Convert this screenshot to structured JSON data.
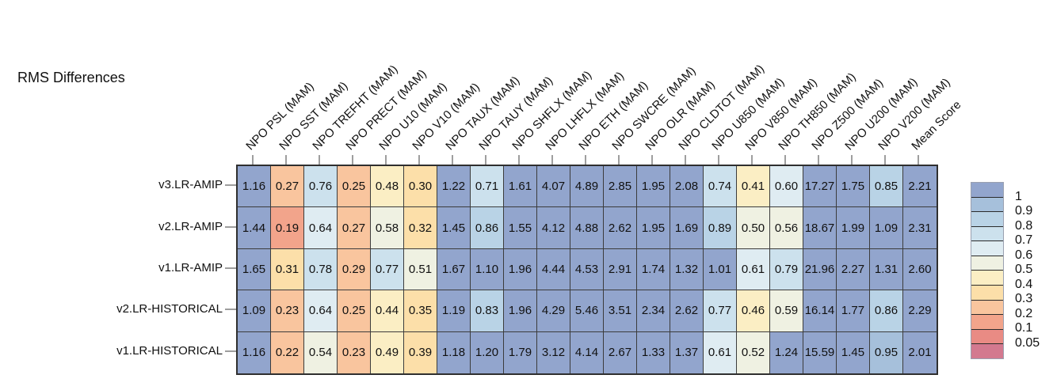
{
  "chart_data": {
    "type": "heatmap",
    "title": "RMS Differences",
    "columns": [
      "NPO PSL (MAM)",
      "NPO SST (MAM)",
      "NPO TREFHT (MAM)",
      "NPO PRECT (MAM)",
      "NPO U10 (MAM)",
      "NPO V10 (MAM)",
      "NPO TAUX (MAM)",
      "NPO TAUY (MAM)",
      "NPO SHFLX (MAM)",
      "NPO LHFLX (MAM)",
      "NPO ETH (MAM)",
      "NPO SWCRE (MAM)",
      "NPO OLR (MAM)",
      "NPO CLDTOT (MAM)",
      "NPO U850 (MAM)",
      "NPO V850 (MAM)",
      "NPO TH850 (MAM)",
      "NPO Z500 (MAM)",
      "NPO U200 (MAM)",
      "NPO V200 (MAM)",
      "Mean Score"
    ],
    "rows": [
      {
        "label": "v3.LR-AMIP",
        "values": [
          "1.16",
          "0.27",
          "0.76",
          "0.25",
          "0.48",
          "0.30",
          "1.22",
          "0.71",
          "1.61",
          "4.07",
          "4.89",
          "2.85",
          "1.95",
          "2.08",
          "0.74",
          "0.41",
          "0.60",
          "17.27",
          "1.75",
          "0.85",
          "2.21"
        ]
      },
      {
        "label": "v2.LR-AMIP",
        "values": [
          "1.44",
          "0.19",
          "0.64",
          "0.27",
          "0.58",
          "0.32",
          "1.45",
          "0.86",
          "1.55",
          "4.12",
          "4.88",
          "2.62",
          "1.95",
          "1.69",
          "0.89",
          "0.50",
          "0.56",
          "18.67",
          "1.99",
          "1.09",
          "2.31"
        ]
      },
      {
        "label": "v1.LR-AMIP",
        "values": [
          "1.65",
          "0.31",
          "0.78",
          "0.29",
          "0.77",
          "0.51",
          "1.67",
          "1.10",
          "1.96",
          "4.44",
          "4.53",
          "2.91",
          "1.74",
          "1.32",
          "1.01",
          "0.61",
          "0.79",
          "21.96",
          "2.27",
          "1.31",
          "2.60"
        ]
      },
      {
        "label": "v2.LR-HISTORICAL",
        "values": [
          "1.09",
          "0.23",
          "0.64",
          "0.25",
          "0.44",
          "0.35",
          "1.19",
          "0.83",
          "1.96",
          "4.29",
          "5.46",
          "3.51",
          "2.34",
          "2.62",
          "0.77",
          "0.46",
          "0.59",
          "16.14",
          "1.77",
          "0.86",
          "2.29"
        ]
      },
      {
        "label": "v1.LR-HISTORICAL",
        "values": [
          "1.16",
          "0.22",
          "0.54",
          "0.23",
          "0.49",
          "0.39",
          "1.18",
          "1.20",
          "1.79",
          "3.12",
          "4.14",
          "2.67",
          "1.33",
          "1.37",
          "0.61",
          "0.52",
          "1.24",
          "15.59",
          "1.45",
          "0.95",
          "2.01"
        ]
      }
    ],
    "colorbar": {
      "tick_labels": [
        "1",
        "0.9",
        "0.8",
        "0.7",
        "0.6",
        "0.5",
        "0.4",
        "0.3",
        "0.2",
        "0.1",
        "0.05"
      ],
      "thresholds": [
        1,
        0.9,
        0.8,
        0.7,
        0.6,
        0.5,
        0.4,
        0.3,
        0.2,
        0.1,
        0.05
      ],
      "colors": [
        "#92a5cd",
        "#a6c0db",
        "#b9d3e6",
        "#cce1ed",
        "#dfecf2",
        "#eff1e2",
        "#fbeec4",
        "#fcdfa9",
        "#f9c59e",
        "#f2a48b",
        "#e98b84",
        "#d3798f"
      ]
    },
    "legend_position": "right",
    "xlabel": "",
    "ylabel": ""
  }
}
